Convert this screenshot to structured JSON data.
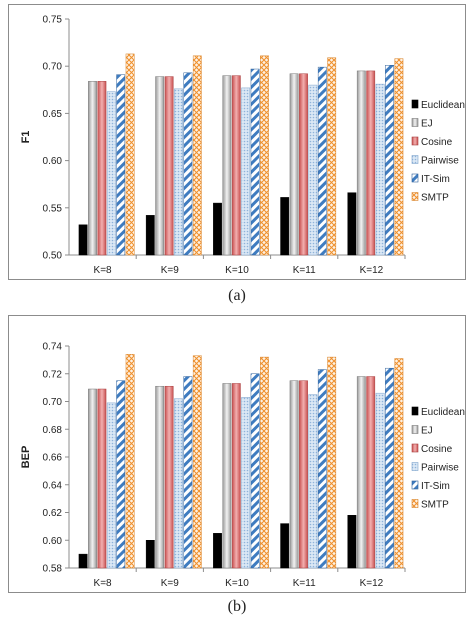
{
  "chart_data": [
    {
      "type": "bar",
      "panel": "(a)",
      "ylabel": "F1",
      "xlabel": "",
      "ylim": [
        0.5,
        0.75
      ],
      "yticks": [
        "0.50",
        "0.55",
        "0.60",
        "0.65",
        "0.70",
        "0.75"
      ],
      "categories": [
        "K=8",
        "K=9",
        "K=10",
        "K=11",
        "K=12"
      ],
      "legend_position": "right",
      "grid": false,
      "series": [
        {
          "name": "Euclidean",
          "color": "#000000",
          "values": [
            0.532,
            0.542,
            0.555,
            0.561,
            0.566
          ]
        },
        {
          "name": "EJ",
          "color": "#bfbfbf",
          "values": [
            0.684,
            0.689,
            0.69,
            0.692,
            0.695
          ]
        },
        {
          "name": "Cosine",
          "color": "#e07a7a",
          "values": [
            0.684,
            0.689,
            0.69,
            0.692,
            0.695
          ]
        },
        {
          "name": "Pairwise",
          "color": "#a9c6e6",
          "values": [
            0.673,
            0.676,
            0.677,
            0.68,
            0.681
          ]
        },
        {
          "name": "IT-Sim",
          "color": "#3f7cc0",
          "values": [
            0.691,
            0.693,
            0.697,
            0.699,
            0.701
          ]
        },
        {
          "name": "SMTP",
          "color": "#f3a85a",
          "values": [
            0.713,
            0.711,
            0.711,
            0.709,
            0.708
          ]
        }
      ]
    },
    {
      "type": "bar",
      "panel": "(b)",
      "ylabel": "BEP",
      "xlabel": "",
      "ylim": [
        0.58,
        0.74
      ],
      "yticks": [
        "0.58",
        "0.60",
        "0.62",
        "0.64",
        "0.66",
        "0.68",
        "0.70",
        "0.72",
        "0.74"
      ],
      "categories": [
        "K=8",
        "K=9",
        "K=10",
        "K=11",
        "K=12"
      ],
      "legend_position": "right",
      "grid": false,
      "series": [
        {
          "name": "Euclidean",
          "color": "#000000",
          "values": [
            0.59,
            0.6,
            0.605,
            0.612,
            0.618
          ]
        },
        {
          "name": "EJ",
          "color": "#bfbfbf",
          "values": [
            0.709,
            0.711,
            0.713,
            0.715,
            0.718
          ]
        },
        {
          "name": "Cosine",
          "color": "#e07a7a",
          "values": [
            0.709,
            0.711,
            0.713,
            0.715,
            0.718
          ]
        },
        {
          "name": "Pairwise",
          "color": "#a9c6e6",
          "values": [
            0.699,
            0.702,
            0.703,
            0.705,
            0.706
          ]
        },
        {
          "name": "IT-Sim",
          "color": "#3f7cc0",
          "values": [
            0.715,
            0.718,
            0.72,
            0.723,
            0.724
          ]
        },
        {
          "name": "SMTP",
          "color": "#f3a85a",
          "values": [
            0.734,
            0.733,
            0.732,
            0.732,
            0.731
          ]
        }
      ]
    }
  ],
  "captions": {
    "a": "(a)",
    "b": "(b)"
  }
}
